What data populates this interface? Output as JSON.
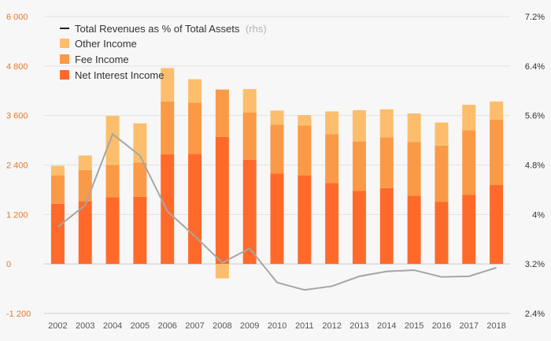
{
  "chart_data": {
    "type": "bar",
    "stacked": true,
    "categories": [
      "2002",
      "2003",
      "2004",
      "2005",
      "2006",
      "2007",
      "2008",
      "2009",
      "2010",
      "2011",
      "2012",
      "2013",
      "2014",
      "2015",
      "2016",
      "2017",
      "2018"
    ],
    "series": [
      {
        "name": "Net Interest Income",
        "color": "#ff6a2b",
        "values": [
          1460,
          1520,
          1620,
          1630,
          2660,
          2670,
          3080,
          2530,
          2190,
          2150,
          1960,
          1770,
          1840,
          1660,
          1510,
          1680,
          1920
        ]
      },
      {
        "name": "Fee Income",
        "color": "#fa9a46",
        "values": [
          690,
          760,
          780,
          830,
          1280,
          1240,
          1150,
          1140,
          1190,
          1210,
          1190,
          1200,
          1230,
          1300,
          1360,
          1560,
          1580
        ]
      },
      {
        "name": "Other Income",
        "color": "#fcbe6c",
        "values": [
          230,
          350,
          1190,
          950,
          810,
          570,
          -350,
          570,
          340,
          250,
          550,
          760,
          680,
          690,
          560,
          620,
          440
        ]
      }
    ],
    "line_series": {
      "name": "Total Revenues as % of Total Assets",
      "legend_suffix": "(rhs)",
      "axis": "right",
      "color": "#a6a6a6",
      "values": [
        3.8,
        4.15,
        5.3,
        4.95,
        4.05,
        3.65,
        3.22,
        3.45,
        2.9,
        2.78,
        2.84,
        3.0,
        3.08,
        3.1,
        2.99,
        3.0,
        3.14
      ]
    },
    "left_axis": {
      "ylim": [
        -1200,
        6000
      ],
      "ticks": [
        "-1 200",
        "0",
        "1 200",
        "2 400",
        "3 600",
        "4 800",
        "6 000"
      ],
      "tick_values": [
        -1200,
        0,
        1200,
        2400,
        3600,
        4800,
        6000
      ],
      "color": "#e8762a"
    },
    "right_axis": {
      "ylim": [
        2.4,
        7.2
      ],
      "ticks": [
        "2.4%",
        "3.2%",
        "4%",
        "4.8%",
        "5.6%",
        "6.4%",
        "7.2%"
      ],
      "tick_values": [
        2.4,
        3.2,
        4.0,
        4.8,
        5.6,
        6.4,
        7.2
      ]
    },
    "legend": {
      "placement": "top-left"
    },
    "grid": true
  }
}
